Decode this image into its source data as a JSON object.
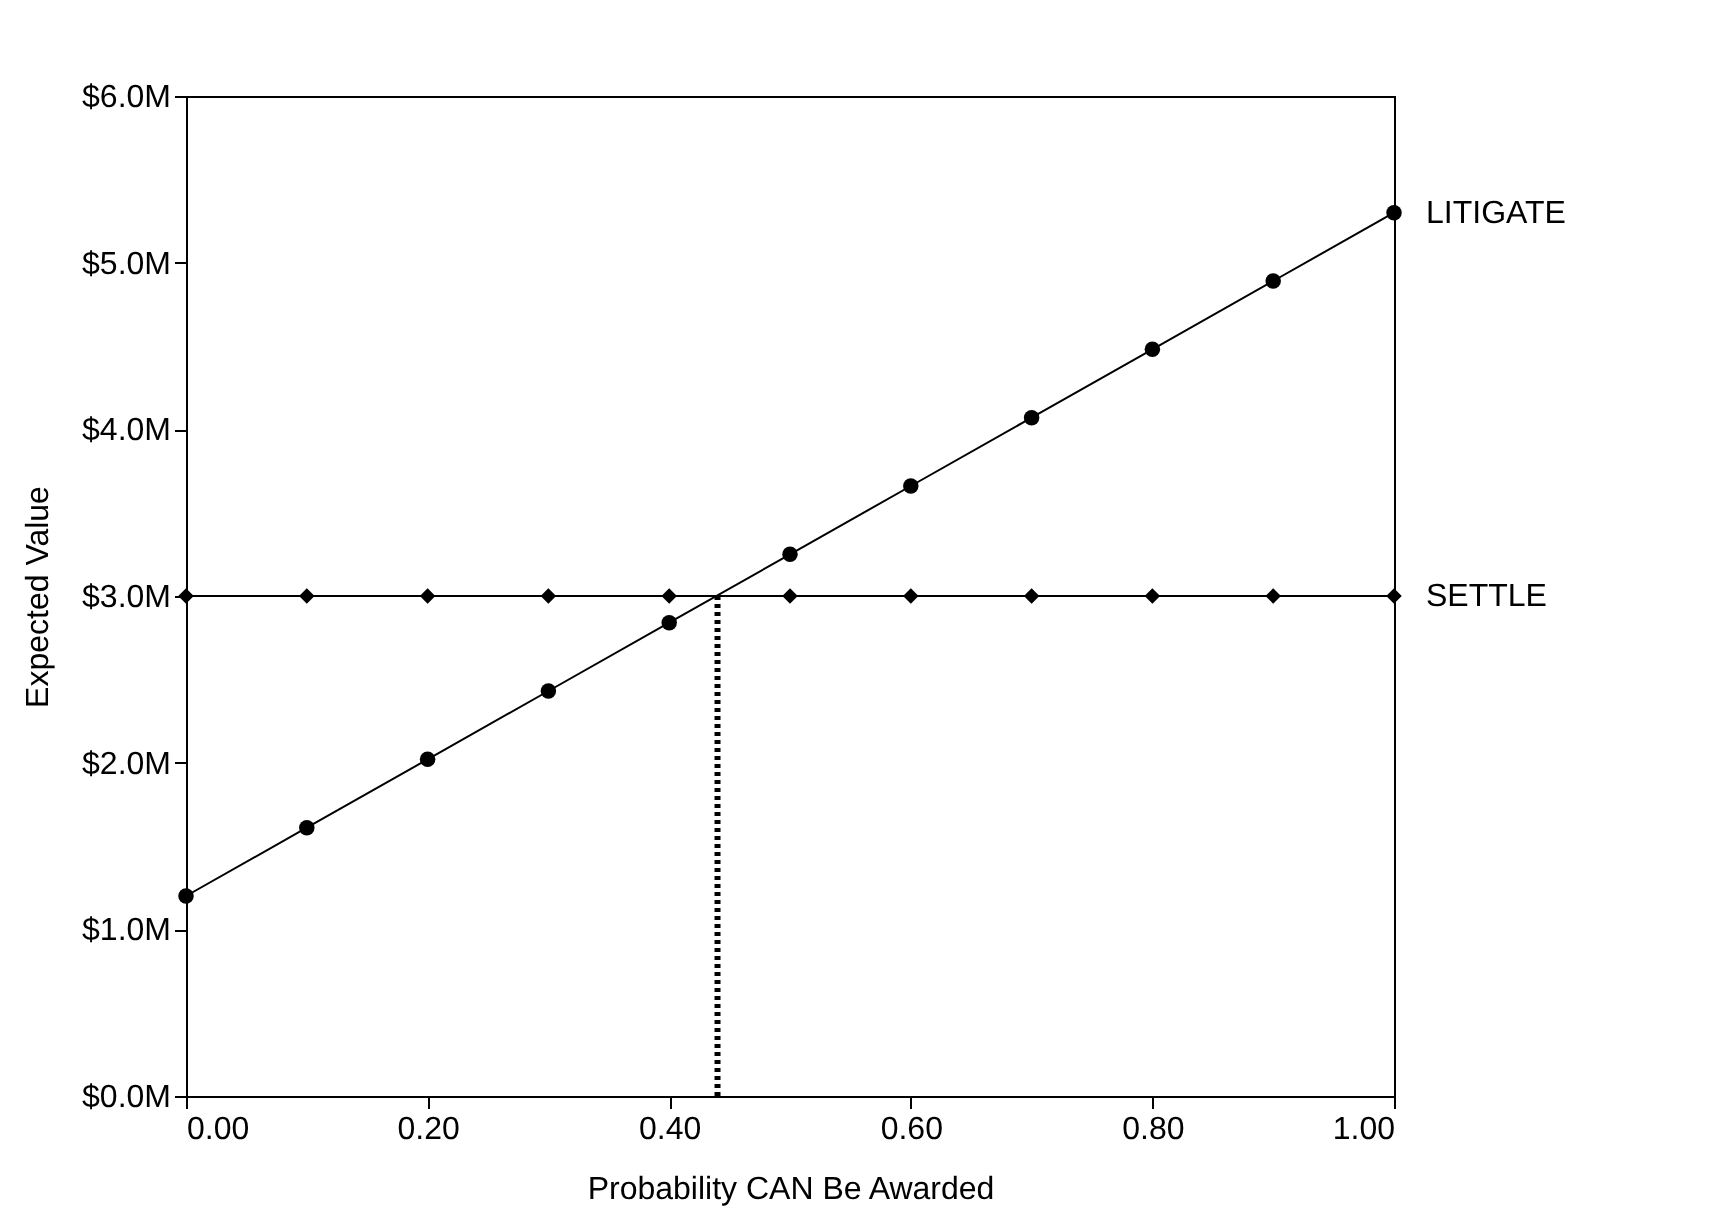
{
  "chart_data": {
    "type": "line",
    "xlabel": "Probability CAN Be Awarded",
    "ylabel": "Expected Value",
    "xlim": [
      0,
      1
    ],
    "ylim": [
      0,
      6
    ],
    "xticks": [
      {
        "value": 0,
        "label": "0.00"
      },
      {
        "value": 0.2,
        "label": "0.20"
      },
      {
        "value": 0.4,
        "label": "0.40"
      },
      {
        "value": 0.6,
        "label": "0.60"
      },
      {
        "value": 0.8,
        "label": "0.80"
      },
      {
        "value": 1,
        "label": "1.00"
      }
    ],
    "yticks": [
      {
        "value": 0,
        "label": "$0.0M"
      },
      {
        "value": 1,
        "label": "$1.0M"
      },
      {
        "value": 2,
        "label": "$2.0M"
      },
      {
        "value": 3,
        "label": "$3.0M"
      },
      {
        "value": 4,
        "label": "$4.0M"
      },
      {
        "value": 5,
        "label": "$5.0M"
      },
      {
        "value": 6,
        "label": "$6.0M"
      }
    ],
    "grid": false,
    "series": [
      {
        "name": "LITIGATE",
        "color": "#000000",
        "marker": "circle",
        "line_style": "solid",
        "x": [
          0,
          0.1,
          0.2,
          0.3,
          0.4,
          0.5,
          0.6,
          0.7,
          0.8,
          0.9,
          1
        ],
        "values": [
          1.2,
          1.61,
          2.02,
          2.43,
          2.84,
          3.25,
          3.66,
          4.07,
          4.48,
          4.89,
          5.3
        ]
      },
      {
        "name": "SETTLE",
        "color": "#000000",
        "marker": "diamond",
        "line_style": "solid",
        "x": [
          0,
          0.1,
          0.2,
          0.3,
          0.4,
          0.5,
          0.6,
          0.7,
          0.8,
          0.9,
          1
        ],
        "values": [
          3,
          3,
          3,
          3,
          3,
          3,
          3,
          3,
          3,
          3,
          3
        ]
      },
      {
        "color": "#000000",
        "marker": "none",
        "line_style": "dotted",
        "x": [
          0.44,
          0.44
        ],
        "values": [
          0,
          3
        ]
      }
    ]
  }
}
